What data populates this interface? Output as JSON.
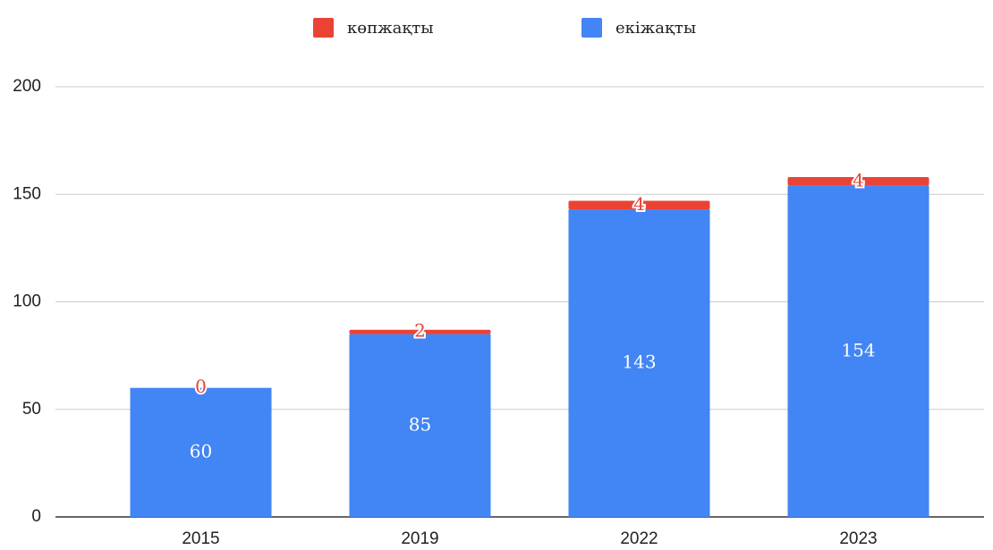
{
  "chart_data": {
    "type": "stacked_bar",
    "categories": [
      "2015",
      "2019",
      "2022",
      "2023"
    ],
    "series": [
      {
        "name": "көпжақты",
        "color": "#ea4335",
        "values": [
          0,
          2,
          4,
          4
        ]
      },
      {
        "name": "екіжақты",
        "color": "#4285f4",
        "values": [
          60,
          85,
          143,
          154
        ]
      }
    ],
    "stack_order": [
      "екіжақты",
      "көпжақты"
    ],
    "ylim": [
      0,
      200
    ],
    "yticks": [
      0,
      50,
      100,
      150,
      200
    ],
    "grid": true,
    "legend": "top"
  }
}
